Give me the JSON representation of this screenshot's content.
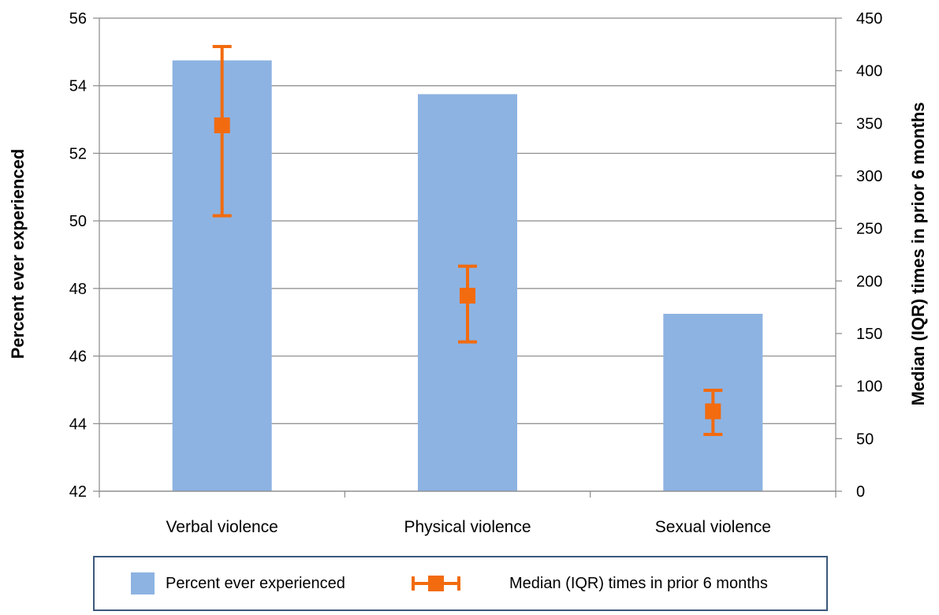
{
  "chart_data": {
    "type": "bar",
    "categories": [
      "Verbal violence",
      "Physical violence",
      "Sexual violence"
    ],
    "series": [
      {
        "name": "Percent ever experienced",
        "axis": "left",
        "kind": "bar",
        "color": "#8db3e2",
        "values": [
          54.75,
          53.75,
          47.25
        ]
      },
      {
        "name": "Median (IQR) times in prior 6 months",
        "axis": "right",
        "kind": "point-with-error",
        "color": "#f26b0f",
        "values": [
          348,
          186,
          76
        ],
        "lower": [
          262,
          142,
          54
        ],
        "upper": [
          423,
          214,
          96
        ]
      }
    ],
    "ylabel": "Percent ever experienced",
    "y2label": "Median (IQR) times in prior 6 months",
    "ylim": [
      42,
      56
    ],
    "y2lim": [
      0,
      450
    ],
    "yticks": [
      "42",
      "44",
      "46",
      "48",
      "50",
      "52",
      "54",
      "56"
    ],
    "y2ticks": [
      "0",
      "50",
      "100",
      "150",
      "200",
      "250",
      "300",
      "350",
      "400",
      "450"
    ],
    "grid": true,
    "legend_position": "bottom"
  },
  "legend": {
    "bar_label": "Percent ever experienced",
    "error_label": "Median (IQR) times in prior 6 months"
  }
}
